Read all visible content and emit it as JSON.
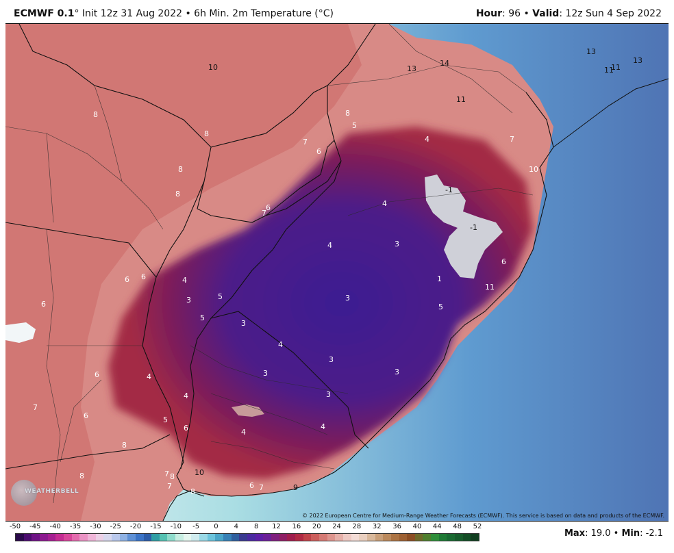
{
  "header": {
    "model": "ECMWF 0.1",
    "deg": "°",
    "init": " Init 12z 31 Aug 2022 • 6h Min. 2m Temperature (°C)",
    "hour_label": "Hour",
    "hour_value": ": 96 • ",
    "valid_label": "Valid",
    "valid_value": ": 12z Sun 4 Sep 2022"
  },
  "map": {
    "copyright": "© 2022 European Centre for Medium-Range Weather Forecasts (ECMWF). This service is based on data and products of the ECMWF.",
    "logo_text": "WEATHERBELL",
    "temp_labels": [
      {
        "id": "t1",
        "v": "10"
      },
      {
        "id": "t2",
        "v": "13"
      },
      {
        "id": "t3",
        "v": "14"
      },
      {
        "id": "t4",
        "v": "13"
      },
      {
        "id": "t5",
        "v": "11"
      },
      {
        "id": "t6",
        "v": "11"
      },
      {
        "id": "t7",
        "v": "13"
      },
      {
        "id": "t8",
        "v": "11"
      },
      {
        "id": "t9",
        "v": "8"
      },
      {
        "id": "t10",
        "v": "8"
      },
      {
        "id": "t11",
        "v": "5"
      },
      {
        "id": "t12",
        "v": "7"
      },
      {
        "id": "t13",
        "v": "4"
      },
      {
        "id": "t14",
        "v": "7"
      },
      {
        "id": "t15",
        "v": "6"
      },
      {
        "id": "t16",
        "v": "8"
      },
      {
        "id": "t17",
        "v": "8"
      },
      {
        "id": "t18",
        "v": "-1"
      },
      {
        "id": "t19",
        "v": "10"
      },
      {
        "id": "t20",
        "v": "8"
      },
      {
        "id": "t21",
        "v": "6"
      },
      {
        "id": "t22",
        "v": "7"
      },
      {
        "id": "t23",
        "v": "4"
      },
      {
        "id": "t24",
        "v": "-1"
      },
      {
        "id": "t25",
        "v": "4"
      },
      {
        "id": "t26",
        "v": "3"
      },
      {
        "id": "t27",
        "v": "6"
      },
      {
        "id": "t28",
        "v": "6"
      },
      {
        "id": "t29",
        "v": "6"
      },
      {
        "id": "t30",
        "v": "4"
      },
      {
        "id": "t31",
        "v": "1"
      },
      {
        "id": "t32",
        "v": "11"
      },
      {
        "id": "t33",
        "v": "3"
      },
      {
        "id": "t34",
        "v": "5"
      },
      {
        "id": "t35",
        "v": "3"
      },
      {
        "id": "t36",
        "v": "6"
      },
      {
        "id": "t37",
        "v": "5"
      },
      {
        "id": "t38",
        "v": "3"
      },
      {
        "id": "t39",
        "v": "4"
      },
      {
        "id": "t40",
        "v": "3"
      },
      {
        "id": "t41",
        "v": "5"
      },
      {
        "id": "t42",
        "v": "6"
      },
      {
        "id": "t43",
        "v": "4"
      },
      {
        "id": "t44",
        "v": "3"
      },
      {
        "id": "t45",
        "v": "3"
      },
      {
        "id": "t46",
        "v": "7"
      },
      {
        "id": "t47",
        "v": "4"
      },
      {
        "id": "t48",
        "v": "6"
      },
      {
        "id": "t49",
        "v": "3"
      },
      {
        "id": "t50",
        "v": "5"
      },
      {
        "id": "t51",
        "v": "6"
      },
      {
        "id": "t52",
        "v": "4"
      },
      {
        "id": "t53",
        "v": "4"
      },
      {
        "id": "t54",
        "v": "8"
      },
      {
        "id": "t55",
        "v": "8"
      },
      {
        "id": "t56",
        "v": "10"
      },
      {
        "id": "t57",
        "v": "7"
      },
      {
        "id": "t58",
        "v": "8"
      },
      {
        "id": "t59",
        "v": "7"
      },
      {
        "id": "t60",
        "v": "8"
      },
      {
        "id": "t61",
        "v": "6"
      },
      {
        "id": "t62",
        "v": "7"
      },
      {
        "id": "t63",
        "v": "9"
      }
    ]
  },
  "scale": {
    "labels": [
      "-50",
      "-45",
      "-40",
      "-35",
      "-30",
      "-25",
      "-20",
      "-15",
      "-10",
      "-5",
      "0",
      "4",
      "8",
      "12",
      "16",
      "20",
      "24",
      "28",
      "32",
      "36",
      "40",
      "44",
      "48",
      "52"
    ],
    "colors": [
      "#2a0a4a",
      "#4b0d6e",
      "#6e1285",
      "#8c1a8f",
      "#a51f91",
      "#c42c92",
      "#d8469b",
      "#e36bae",
      "#ea93c4",
      "#efb5d8",
      "#ecd0e6",
      "#d8d8ee",
      "#b9c8ec",
      "#8fb2e4",
      "#5f91d6",
      "#3b74c6",
      "#2c5ca8",
      "#2f9ea4",
      "#56c2b2",
      "#8fdccc",
      "#c7eee2",
      "#e6f7f0",
      "#d0ecef",
      "#9ad9e6",
      "#6cc4dc",
      "#4aa6c9",
      "#3781b6",
      "#2f5f9e",
      "#3a3a90",
      "#4a2aa0",
      "#5d1fa6",
      "#6b1f98",
      "#7f1f7e",
      "#8f1e64",
      "#a01e4d",
      "#b02a44",
      "#c0434a",
      "#cc5e5c",
      "#d57a74",
      "#de958e",
      "#e6b0a9",
      "#eecac4",
      "#f3dcd6",
      "#ead0c0",
      "#d9b99c",
      "#c9a07a",
      "#bb8a5d",
      "#ac7444",
      "#9d6032",
      "#8c4e24",
      "#6f6a2a",
      "#4f7f2e",
      "#2f8f3a",
      "#1f7a35",
      "#1a6a32",
      "#175c2c",
      "#144d26",
      "#123f21"
    ],
    "max_label": "Max",
    "max_value": ": 19.0 • ",
    "min_label": "Min",
    "min_value": ": -2.1"
  }
}
